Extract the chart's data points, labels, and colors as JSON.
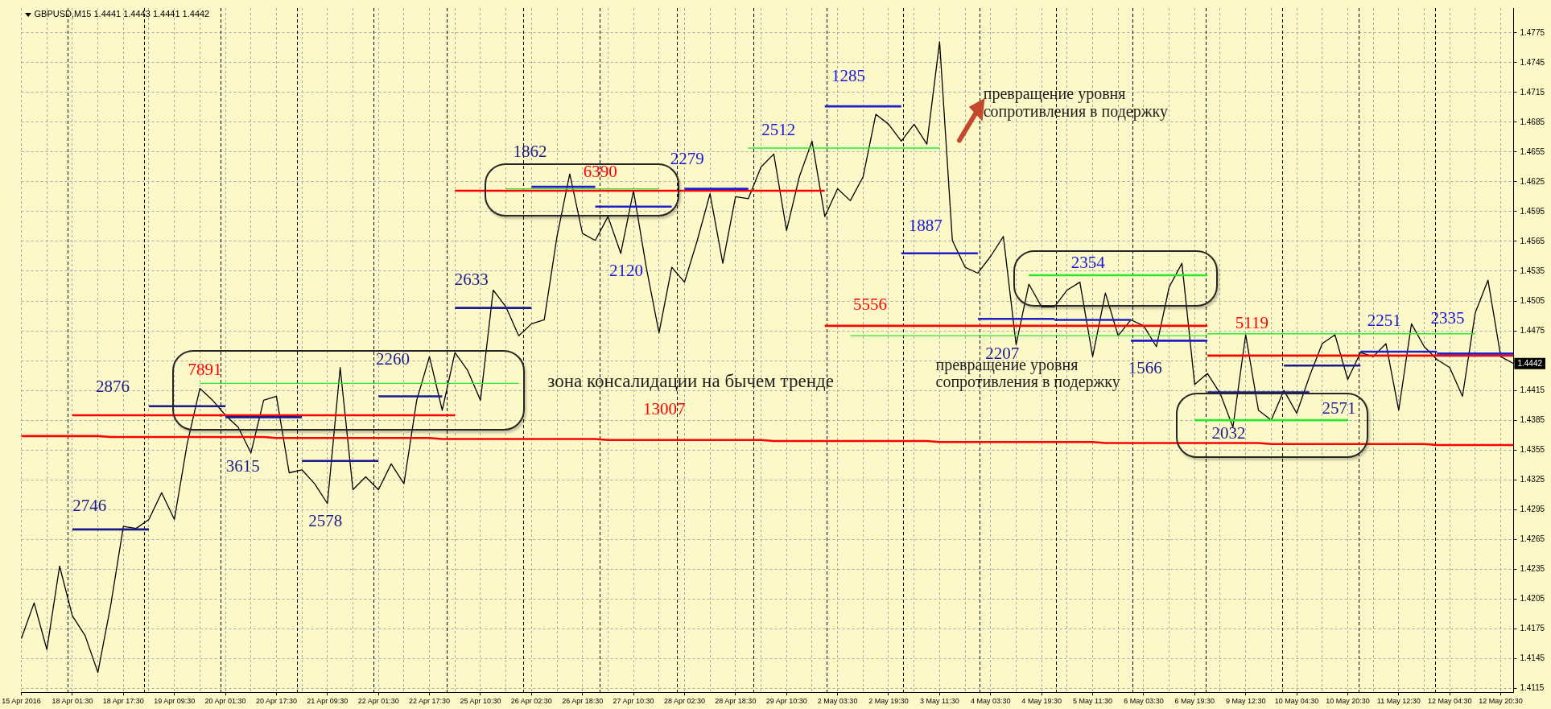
{
  "chart_data": {
    "type": "line",
    "title": "GBPUSD,M15 1.4441 1.4443 1.4441 1.4442",
    "categories": [
      "15 Apr 2016",
      null,
      null,
      null,
      "18 Apr 01:30",
      null,
      null,
      null,
      "18 Apr 17:30",
      null,
      null,
      null,
      "19 Apr 09:30",
      null,
      null,
      null,
      "20 Apr 01:30",
      null,
      null,
      null,
      "20 Apr 17:30",
      null,
      null,
      null,
      "21 Apr 09:30",
      null,
      null,
      null,
      "22 Apr 01:30",
      null,
      null,
      null,
      "22 Apr 17:30",
      null,
      null,
      null,
      "25 Apr 10:30",
      null,
      null,
      null,
      "26 Apr 02:30",
      null,
      null,
      null,
      "26 Apr 18:30",
      null,
      null,
      null,
      "27 Apr 10:30",
      null,
      null,
      null,
      "28 Apr 02:30",
      null,
      null,
      null,
      "28 Apr 18:30",
      null,
      null,
      null,
      "29 Apr 10:30",
      null,
      null,
      null,
      "2 May 03:30",
      null,
      null,
      null,
      "2 May 19:30",
      null,
      null,
      null,
      "3 May 11:30",
      null,
      null,
      null,
      "4 May 03:30",
      null,
      null,
      null,
      "4 May 19:30",
      null,
      null,
      null,
      "5 May 11:30",
      null,
      null,
      null,
      "6 May 03:30",
      null,
      null,
      null,
      "6 May 19:30",
      null,
      null,
      null,
      "9 May 12:30",
      null,
      null,
      null,
      "10 May 04:30",
      null,
      null,
      null,
      "10 May 20:30",
      null,
      null,
      null,
      "11 May 12:30",
      null,
      null,
      null,
      "12 May 04:30",
      null,
      null,
      null,
      "12 May 20:30",
      null
    ],
    "ylim": [
      1.4111,
      1.48
    ],
    "yticks": [
      1.4115,
      1.4145,
      1.4175,
      1.4205,
      1.4235,
      1.4265,
      1.4295,
      1.4325,
      1.4355,
      1.4385,
      1.4415,
      {
        "value": 1.4445,
        "label": null
      },
      1.4475,
      1.4505,
      1.4535,
      1.4565,
      1.4595,
      1.4625,
      1.4655,
      1.4685,
      1.4715,
      1.4745,
      1.4775
    ],
    "grid": true,
    "legend": false,
    "marker": "none",
    "series": [
      {
        "color": "#1a1a8e",
        "values": [
          null,
          null,
          null,
          null,
          1.4275,
          1.4275,
          1.4275,
          1.4275,
          1.4275,
          1.4275,
          1.4275,
          null,
          null,
          null,
          null,
          null,
          1.4388,
          1.4388,
          1.4388,
          1.4388,
          1.4388,
          1.4388,
          1.4388,
          null,
          null,
          null,
          null,
          null,
          1.4409,
          1.4409,
          1.4409,
          1.4409,
          1.4409,
          1.4409,
          null,
          null,
          null,
          null,
          null,
          null,
          null,
          null,
          null,
          null,
          null,
          null,
          null,
          null,
          null,
          null,
          null,
          null,
          null,
          null,
          null,
          null,
          null,
          null,
          null,
          null,
          null,
          null,
          null,
          null,
          null,
          null,
          null,
          null,
          null,
          null,
          null,
          null,
          null,
          null,
          null,
          null,
          null,
          null,
          null,
          null,
          null,
          null,
          null,
          null,
          null,
          null,
          null,
          null,
          null,
          null,
          null,
          null,
          null,
          1.4413,
          1.4413,
          1.4413,
          1.4413,
          1.4413,
          1.4413,
          1.4413,
          1.4413,
          1.4413,
          null,
          null,
          null,
          null,
          null,
          null,
          null,
          null,
          null,
          null,
          null,
          null,
          null,
          null,
          null,
          null
        ]
      },
      {
        "color": "#1a1a8e",
        "values": [
          null,
          null,
          null,
          null,
          null,
          null,
          null,
          null,
          null,
          null,
          1.4399,
          1.4399,
          1.4399,
          1.4399,
          1.4399,
          1.4399,
          1.4399,
          null,
          null,
          null,
          null,
          null,
          1.4344,
          1.4344,
          1.4344,
          1.4344,
          1.4344,
          1.4344,
          1.4344,
          null,
          null,
          null,
          null,
          null,
          1.4498,
          1.4498,
          1.4498,
          1.4498,
          1.4498,
          1.4498,
          1.4498,
          null,
          null,
          null,
          null,
          null,
          null,
          null,
          null,
          null,
          null,
          null,
          null,
          null,
          null,
          null,
          null,
          null,
          null,
          null,
          null,
          null,
          null,
          null,
          null,
          null,
          null,
          null,
          null,
          null,
          null,
          null,
          null,
          null,
          null,
          null,
          null,
          null,
          null,
          null,
          null,
          null,
          null,
          null,
          null,
          null,
          null,
          null,
          null,
          null,
          null,
          null,
          null,
          null,
          null,
          null,
          null,
          null,
          null,
          1.444,
          1.444,
          1.444,
          1.444,
          1.444,
          1.444,
          1.444,
          null,
          null,
          null,
          null,
          null,
          null,
          null,
          null,
          null,
          null,
          null,
          null
        ]
      },
      {
        "color": "#1f1fc8",
        "values": [
          null,
          null,
          null,
          null,
          null,
          null,
          null,
          null,
          null,
          null,
          null,
          null,
          null,
          null,
          null,
          null,
          null,
          null,
          null,
          null,
          null,
          null,
          null,
          null,
          null,
          null,
          null,
          null,
          null,
          null,
          null,
          null,
          null,
          null,
          null,
          null,
          null,
          null,
          null,
          null,
          1.462,
          1.462,
          1.462,
          1.462,
          1.462,
          1.462,
          null,
          null,
          null,
          null,
          null,
          null,
          1.4618,
          1.4618,
          1.4618,
          1.4618,
          1.4618,
          1.4618,
          null,
          null,
          null,
          null,
          null,
          1.4701,
          1.4701,
          1.4701,
          1.4701,
          1.4701,
          1.4701,
          1.4701,
          null,
          null,
          null,
          null,
          null,
          1.4487,
          1.4487,
          1.4487,
          1.4487,
          1.4487,
          1.4487,
          1.4487,
          null,
          null,
          null,
          null,
          null,
          1.4465,
          1.4465,
          1.4465,
          1.4465,
          1.4465,
          1.4465,
          1.4465,
          null,
          null,
          null,
          null,
          null,
          null,
          null,
          null,
          null,
          null,
          null,
          1.4454,
          1.4454,
          1.4454,
          1.4454,
          1.4454,
          1.4454,
          1.4454,
          null,
          null,
          null,
          null,
          null,
          null
        ]
      },
      {
        "color": "#1f1fc8",
        "values": [
          null,
          null,
          null,
          null,
          null,
          null,
          null,
          null,
          null,
          null,
          null,
          null,
          null,
          null,
          null,
          null,
          null,
          null,
          null,
          null,
          null,
          null,
          null,
          null,
          null,
          null,
          null,
          null,
          null,
          null,
          null,
          null,
          null,
          null,
          null,
          null,
          null,
          null,
          null,
          null,
          null,
          null,
          null,
          null,
          null,
          1.46,
          1.46,
          1.46,
          1.46,
          1.46,
          1.46,
          1.46,
          null,
          null,
          null,
          null,
          null,
          null,
          null,
          null,
          null,
          null,
          null,
          null,
          null,
          null,
          null,
          null,
          null,
          1.4553,
          1.4553,
          1.4553,
          1.4553,
          1.4553,
          1.4553,
          1.4553,
          null,
          null,
          null,
          null,
          null,
          1.4486,
          1.4486,
          1.4486,
          1.4486,
          1.4486,
          1.4486,
          1.4486,
          null,
          null,
          null,
          null,
          null,
          null,
          null,
          null,
          null,
          null,
          null,
          null,
          null,
          null,
          null,
          null,
          null,
          null,
          null,
          null,
          null,
          null,
          null,
          1.4452,
          1.4452,
          1.4452,
          1.4452,
          1.4452,
          1.4452,
          1.4452
        ]
      },
      {
        "color": "#2ee62e",
        "values": [
          null,
          null,
          null,
          null,
          null,
          null,
          null,
          null,
          null,
          null,
          null,
          null,
          null,
          null,
          1.4422,
          1.4422,
          1.4422,
          1.4422,
          1.4422,
          1.4422,
          1.4422,
          1.4422,
          1.4422,
          1.4422,
          1.4422,
          1.4422,
          1.4422,
          1.4422,
          1.4422,
          1.4422,
          1.4422,
          1.4422,
          1.4422,
          1.4422,
          1.4422,
          1.4422,
          1.4422,
          1.4422,
          1.4422,
          1.4422,
          null,
          null,
          null,
          null,
          null,
          null,
          null,
          null,
          null,
          null,
          null,
          null,
          null,
          null,
          null,
          null,
          null,
          1.4659,
          1.4659,
          1.4659,
          1.4659,
          1.4659,
          1.4659,
          1.4659,
          1.4659,
          1.4659,
          1.4659,
          1.4659,
          1.4659,
          1.4659,
          1.4659,
          1.4659,
          1.4659,
          null,
          null,
          null,
          null,
          null,
          null,
          null,
          null,
          null,
          null,
          null,
          null,
          null,
          null,
          null,
          null,
          null,
          null,
          null,
          null,
          1.4472,
          1.4472,
          1.4472,
          1.4472,
          1.4472,
          1.4472,
          1.4472,
          1.4472,
          1.4472,
          1.4472,
          1.4472,
          1.4472,
          1.4472,
          1.4472,
          1.4472,
          1.4472,
          1.4472,
          1.4472,
          1.4472,
          1.4472,
          1.4472,
          1.4472,
          null,
          null,
          null
        ]
      },
      {
        "color": "#2ee62e",
        "values": [
          null,
          null,
          null,
          null,
          null,
          null,
          null,
          null,
          null,
          null,
          null,
          null,
          null,
          null,
          null,
          null,
          null,
          null,
          null,
          null,
          null,
          null,
          null,
          null,
          null,
          null,
          null,
          null,
          null,
          null,
          null,
          null,
          null,
          null,
          null,
          null,
          null,
          null,
          1.4618,
          1.4618,
          1.4618,
          1.4618,
          1.4618,
          1.4618,
          1.4618,
          1.4618,
          1.4618,
          1.4618,
          1.4618,
          1.4618,
          1.4618,
          null,
          null,
          null,
          null,
          null,
          null,
          null,
          null,
          null,
          null,
          null,
          null,
          null,
          null,
          1.447,
          1.447,
          1.447,
          1.447,
          1.447,
          1.447,
          1.447,
          1.447,
          1.447,
          1.447,
          1.447,
          1.447,
          1.447,
          1.447,
          1.447,
          1.447,
          1.447,
          1.447,
          1.447,
          1.447,
          1.447,
          1.447,
          1.447,
          1.447,
          1.447,
          1.447,
          1.447,
          1.447,
          1.447,
          null,
          null,
          null,
          null,
          null,
          null,
          null,
          null,
          null,
          null,
          null,
          null,
          null,
          null,
          null,
          null,
          null,
          null,
          null,
          null,
          null,
          null,
          null,
          null
        ]
      },
      {
        "color": "#2ee62e",
        "values": [
          null,
          null,
          null,
          null,
          null,
          null,
          null,
          null,
          null,
          null,
          null,
          null,
          null,
          null,
          null,
          null,
          null,
          null,
          null,
          null,
          null,
          null,
          null,
          null,
          null,
          null,
          null,
          null,
          null,
          null,
          null,
          null,
          null,
          null,
          null,
          null,
          null,
          null,
          null,
          null,
          null,
          null,
          null,
          null,
          null,
          null,
          null,
          null,
          null,
          null,
          null,
          null,
          null,
          null,
          null,
          null,
          null,
          null,
          null,
          null,
          null,
          null,
          null,
          null,
          null,
          null,
          null,
          null,
          null,
          null,
          null,
          null,
          null,
          null,
          null,
          null,
          null,
          null,
          null,
          1.4531,
          1.4531,
          1.4531,
          1.4531,
          1.4531,
          1.4531,
          1.4531,
          1.4531,
          1.4531,
          1.4531,
          1.4531,
          1.4531,
          1.4531,
          1.4531,
          1.4531,
          null,
          null,
          null,
          null,
          null,
          null,
          null,
          null,
          null,
          null,
          null,
          null,
          null,
          null,
          null,
          null,
          null,
          null,
          null,
          null,
          null,
          null,
          null,
          null
        ]
      },
      {
        "color": "#2ee62e",
        "values": [
          null,
          null,
          null,
          null,
          null,
          null,
          null,
          null,
          null,
          null,
          null,
          null,
          null,
          null,
          null,
          null,
          null,
          null,
          null,
          null,
          null,
          null,
          null,
          null,
          null,
          null,
          null,
          null,
          null,
          null,
          null,
          null,
          null,
          null,
          null,
          null,
          null,
          null,
          null,
          null,
          null,
          null,
          null,
          null,
          null,
          null,
          null,
          null,
          null,
          null,
          null,
          null,
          null,
          null,
          null,
          null,
          null,
          null,
          null,
          null,
          null,
          null,
          null,
          null,
          null,
          null,
          null,
          null,
          null,
          null,
          null,
          null,
          null,
          null,
          null,
          null,
          null,
          null,
          null,
          null,
          null,
          null,
          null,
          null,
          null,
          null,
          null,
          null,
          null,
          null,
          null,
          null,
          1.4385,
          1.4385,
          1.4385,
          1.4385,
          1.4385,
          1.4385,
          1.4385,
          1.4385,
          1.4385,
          1.4385,
          1.4385,
          1.4385,
          1.4385,
          null,
          null,
          null,
          null,
          null,
          null,
          null,
          null,
          null,
          null,
          null,
          null,
          null
        ]
      },
      {
        "name": "7891",
        "color": "#ff0000",
        "values": [
          null,
          null,
          null,
          null,
          1.439,
          1.439,
          1.439,
          1.439,
          1.439,
          1.439,
          1.439,
          1.439,
          1.439,
          1.439,
          1.439,
          1.439,
          1.439,
          1.439,
          1.439,
          1.439,
          1.439,
          1.439,
          1.439,
          1.439,
          1.439,
          1.439,
          1.439,
          1.439,
          1.439,
          1.439,
          1.439,
          1.439,
          1.439,
          1.439,
          1.439,
          null,
          null,
          null,
          null,
          null,
          null,
          null,
          null,
          null,
          null,
          null,
          null,
          null,
          null,
          null,
          null,
          null,
          null,
          null,
          null,
          null,
          null,
          null,
          null,
          null,
          null,
          null,
          null,
          null,
          null,
          null,
          null,
          null,
          null,
          null,
          null,
          null,
          null,
          null,
          null,
          null,
          null,
          null,
          null,
          null,
          null,
          null,
          null,
          null,
          null,
          null,
          null,
          null,
          null,
          null,
          null,
          null,
          null,
          null,
          null,
          null,
          null,
          null,
          null,
          null,
          null,
          null,
          null,
          null,
          null,
          null,
          null,
          null,
          null,
          null,
          null,
          null,
          null,
          null,
          null,
          null,
          null,
          null
        ]
      },
      {
        "name": "13007",
        "color": "#ff0000",
        "values": [
          1.4369,
          1.4369,
          1.4369,
          1.4369,
          1.4369,
          1.4369,
          1.4369,
          1.4368,
          1.4368,
          1.4368,
          1.4368,
          1.4368,
          1.4368,
          1.4368,
          1.4368,
          1.4368,
          1.4368,
          1.4368,
          1.4368,
          1.4368,
          1.4367,
          1.4367,
          1.4367,
          1.4367,
          1.4367,
          1.4367,
          1.4367,
          1.4367,
          1.4367,
          1.4367,
          1.4367,
          1.4367,
          1.4367,
          1.4366,
          1.4366,
          1.4366,
          1.4366,
          1.4366,
          1.4366,
          1.4366,
          1.4366,
          1.4366,
          1.4366,
          1.4366,
          1.4366,
          1.4366,
          1.4365,
          1.4365,
          1.4365,
          1.4365,
          1.4365,
          1.4365,
          1.4365,
          1.4365,
          1.4365,
          1.4365,
          1.4365,
          1.4365,
          1.4365,
          1.4364,
          1.4364,
          1.4364,
          1.4364,
          1.4364,
          1.4364,
          1.4364,
          1.4364,
          1.4364,
          1.4364,
          1.4364,
          1.4364,
          1.4364,
          1.4363,
          1.4363,
          1.4363,
          1.4363,
          1.4363,
          1.4363,
          1.4363,
          1.4363,
          1.4363,
          1.4363,
          1.4363,
          1.4363,
          1.4363,
          1.4362,
          1.4362,
          1.4362,
          1.4362,
          1.4362,
          1.4362,
          1.4362,
          1.4362,
          1.4362,
          1.4362,
          1.4362,
          1.4362,
          1.4362,
          1.4361,
          1.4361,
          1.4361,
          1.4361,
          1.4361,
          1.4361,
          1.4361,
          1.4361,
          1.4361,
          1.4361,
          1.4361,
          1.4361,
          1.4361,
          1.436,
          1.436,
          1.436,
          1.436,
          1.436,
          1.436,
          1.436
        ]
      },
      {
        "name": "6390",
        "color": "#ff0000",
        "values": [
          null,
          null,
          null,
          null,
          null,
          null,
          null,
          null,
          null,
          null,
          null,
          null,
          null,
          null,
          null,
          null,
          null,
          null,
          null,
          null,
          null,
          null,
          null,
          null,
          null,
          null,
          null,
          null,
          null,
          null,
          null,
          null,
          null,
          null,
          1.4616,
          1.4616,
          1.4616,
          1.4616,
          1.4616,
          1.4616,
          1.4616,
          1.4616,
          1.4616,
          1.4616,
          1.4616,
          1.4616,
          1.4616,
          1.4616,
          1.4616,
          1.4616,
          1.4616,
          1.4616,
          1.4616,
          1.4616,
          1.4616,
          1.4616,
          1.4616,
          1.4616,
          1.4616,
          1.4616,
          1.4616,
          1.4616,
          1.4616,
          1.4616,
          null,
          null,
          null,
          null,
          null,
          null,
          null,
          null,
          null,
          null,
          null,
          null,
          null,
          null,
          null,
          null,
          null,
          null,
          null,
          null,
          null,
          null,
          null,
          null,
          null,
          null,
          null,
          null,
          null,
          null,
          null,
          null,
          null,
          null,
          null,
          null,
          null,
          null,
          null,
          null,
          null,
          null,
          null,
          null,
          null,
          null,
          null,
          null,
          null,
          null,
          null,
          null,
          null,
          null
        ]
      },
      {
        "name": "5556",
        "color": "#ff0000",
        "values": [
          null,
          null,
          null,
          null,
          null,
          null,
          null,
          null,
          null,
          null,
          null,
          null,
          null,
          null,
          null,
          null,
          null,
          null,
          null,
          null,
          null,
          null,
          null,
          null,
          null,
          null,
          null,
          null,
          null,
          null,
          null,
          null,
          null,
          null,
          null,
          null,
          null,
          null,
          null,
          null,
          null,
          null,
          null,
          null,
          null,
          null,
          null,
          null,
          null,
          null,
          null,
          null,
          null,
          null,
          null,
          null,
          null,
          null,
          null,
          null,
          null,
          null,
          null,
          1.448,
          1.448,
          1.448,
          1.448,
          1.448,
          1.448,
          1.448,
          1.448,
          1.448,
          1.448,
          1.448,
          1.448,
          1.448,
          1.448,
          1.448,
          1.448,
          1.448,
          1.448,
          1.448,
          1.448,
          1.448,
          1.448,
          1.448,
          1.448,
          1.448,
          1.448,
          1.448,
          1.448,
          1.448,
          1.448,
          1.448,
          null,
          null,
          null,
          null,
          null,
          null,
          null,
          null,
          null,
          null,
          null,
          null,
          null,
          null,
          null,
          null,
          null,
          null,
          null,
          null,
          null,
          null,
          null,
          null
        ]
      },
      {
        "name": "5119",
        "color": "#ff0000",
        "values": [
          null,
          null,
          null,
          null,
          null,
          null,
          null,
          null,
          null,
          null,
          null,
          null,
          null,
          null,
          null,
          null,
          null,
          null,
          null,
          null,
          null,
          null,
          null,
          null,
          null,
          null,
          null,
          null,
          null,
          null,
          null,
          null,
          null,
          null,
          null,
          null,
          null,
          null,
          null,
          null,
          null,
          null,
          null,
          null,
          null,
          null,
          null,
          null,
          null,
          null,
          null,
          null,
          null,
          null,
          null,
          null,
          null,
          null,
          null,
          null,
          null,
          null,
          null,
          null,
          null,
          null,
          null,
          null,
          null,
          null,
          null,
          null,
          null,
          null,
          null,
          null,
          null,
          null,
          null,
          null,
          null,
          null,
          null,
          null,
          null,
          null,
          null,
          null,
          null,
          null,
          null,
          null,
          null,
          1.445,
          1.445,
          1.445,
          1.445,
          1.445,
          1.445,
          1.445,
          1.445,
          1.445,
          1.445,
          1.445,
          1.445,
          1.445,
          1.445,
          1.445,
          1.445,
          1.445,
          1.445,
          1.445,
          1.445,
          1.445,
          1.445,
          1.445,
          1.445,
          1.445
        ]
      },
      {
        "color": "#000000",
        "values": [
          1.4165,
          1.4201,
          1.4154,
          1.4238,
          1.4188,
          1.4168,
          1.4131,
          1.4198,
          1.4278,
          1.4276,
          1.4285,
          1.4312,
          1.4285,
          1.4361,
          1.4417,
          1.4405,
          1.439,
          1.4378,
          1.4352,
          1.4405,
          1.4409,
          1.4332,
          1.4335,
          1.4321,
          1.4301,
          1.4438,
          1.4315,
          1.4328,
          1.4315,
          1.4341,
          1.4321,
          1.4405,
          1.4449,
          1.4395,
          1.4453,
          1.4435,
          1.4405,
          1.4516,
          1.4499,
          1.447,
          1.4482,
          1.4486,
          1.457,
          1.4633,
          1.4573,
          1.4566,
          1.459,
          1.4553,
          1.4616,
          1.4539,
          1.4473,
          1.4539,
          1.4524,
          1.4566,
          1.4613,
          1.4543,
          1.461,
          1.4608,
          1.464,
          1.4653,
          1.4576,
          1.463,
          1.4666,
          1.459,
          1.4618,
          1.4606,
          1.463,
          1.4693,
          1.4683,
          1.4666,
          1.4683,
          1.4663,
          1.4766,
          1.4566,
          1.4539,
          1.4533,
          1.455,
          1.457,
          1.4461,
          1.4522,
          1.4499,
          1.4499,
          1.4516,
          1.4524,
          1.4449,
          1.4513,
          1.447,
          1.4486,
          1.448,
          1.4459,
          1.4519,
          1.4543,
          1.4421,
          1.4432,
          1.4412,
          1.4378,
          1.4471,
          1.4395,
          1.4385,
          1.4415,
          1.4392,
          1.4429,
          1.4462,
          1.4471,
          1.4426,
          1.4453,
          1.4449,
          1.4462,
          1.4395,
          1.4482,
          1.4459,
          1.4446,
          1.4438,
          1.4409,
          1.4493,
          1.4526,
          1.4449,
          1.4442
        ]
      }
    ],
    "annotations": [
      "2746",
      "2876",
      "3615",
      "2578",
      "2260",
      "2633",
      "1862",
      "2120",
      "2279",
      "2512",
      "1285",
      "1887",
      "2207",
      "2354",
      "1566",
      "2032",
      "2571",
      "2251",
      "2335",
      {
        "text": "1.4442",
        "y": 1.4442
      },
      "превращение уровня сопротивления в подержку",
      "превращение уровня сопротивления в подержку",
      "зона консалидации на бычем тренде"
    ]
  }
}
